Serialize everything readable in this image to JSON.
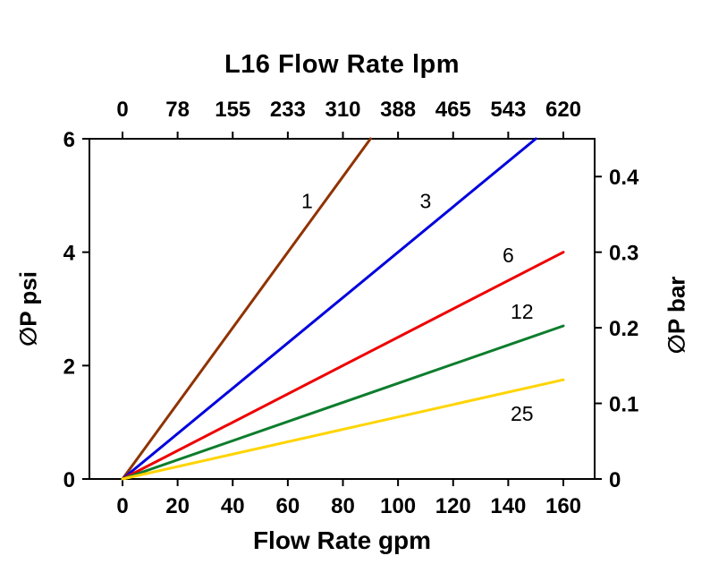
{
  "chart_data": {
    "type": "line",
    "title": "L16 Flow Rate lpm",
    "xlabel": "Flow Rate gpm",
    "ylabel_left": "∅P psi",
    "ylabel_right": "∅P bar",
    "xlim": [
      0,
      160
    ],
    "ylim": [
      0,
      6
    ],
    "y2lim": [
      0,
      0.45
    ],
    "x_ticks": [
      0,
      20,
      40,
      60,
      80,
      100,
      120,
      140,
      160
    ],
    "x_top_tick_labels": [
      "0",
      "78",
      "155",
      "233",
      "310",
      "388",
      "465",
      "543",
      "620"
    ],
    "y_ticks": [
      0,
      2,
      4,
      6
    ],
    "y2_ticks": [
      0,
      0.1,
      0.2,
      0.3,
      0.4
    ],
    "y2_tick_labels": [
      "0",
      "0.1",
      "0.2",
      "0.3",
      "0.4"
    ],
    "grid": false,
    "legend": "inline-labels",
    "series": [
      {
        "name": "1",
        "color": "#8f3300",
        "points": [
          [
            0,
            0
          ],
          [
            90,
            6
          ]
        ],
        "label_pos": [
          67,
          4.9
        ]
      },
      {
        "name": "3",
        "color": "#0000dd",
        "points": [
          [
            0,
            0
          ],
          [
            150,
            6
          ]
        ],
        "label_pos": [
          110,
          4.9
        ]
      },
      {
        "name": "6",
        "color": "#ee0000",
        "points": [
          [
            0,
            0
          ],
          [
            160,
            4.0
          ]
        ],
        "label_pos": [
          140,
          3.95
        ]
      },
      {
        "name": "12",
        "color": "#0d7d2d",
        "points": [
          [
            0,
            0
          ],
          [
            160,
            2.7
          ]
        ],
        "label_pos": [
          145,
          2.95
        ]
      },
      {
        "name": "25",
        "color": "#ffd400",
        "points": [
          [
            0,
            0
          ],
          [
            160,
            1.75
          ]
        ],
        "label_pos": [
          145,
          1.15
        ]
      }
    ]
  }
}
